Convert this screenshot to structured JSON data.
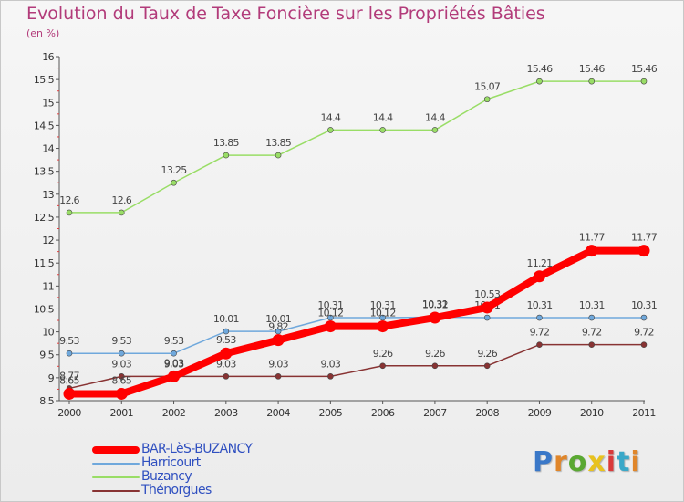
{
  "header": {
    "title": "Evolution du Taux de Taxe Foncière sur les Propriétés Bâties",
    "subtitle": "(en %)"
  },
  "chart_data": {
    "type": "line",
    "x": [
      "2000",
      "2001",
      "2002",
      "2003",
      "2004",
      "2005",
      "2006",
      "2007",
      "2008",
      "2009",
      "2010",
      "2011"
    ],
    "ylim": [
      8.5,
      16
    ],
    "yticks": [
      "8.5",
      "9",
      "9.5",
      "10",
      "10.5",
      "11",
      "11.5",
      "12",
      "12.5",
      "13",
      "13.5",
      "14",
      "14.5",
      "15",
      "15.5",
      "16"
    ],
    "grid": false,
    "legend_position": "bottom-left",
    "series": [
      {
        "name": "BAR-LèS-BUZANCY",
        "color": "#ff0000",
        "values": [
          8.65,
          8.65,
          9.03,
          9.53,
          9.82,
          10.12,
          10.12,
          10.31,
          10.53,
          11.21,
          11.77,
          11.77
        ],
        "labels": [
          "8.65",
          "8.65",
          "9.03",
          "9.53",
          "9.82",
          "10.12",
          "10.12",
          "10.31",
          "10.53",
          "11.21",
          "11.77",
          "11.77"
        ]
      },
      {
        "name": "Harricourt",
        "color": "#6fa8dc",
        "values": [
          9.53,
          9.53,
          9.53,
          10.01,
          10.01,
          10.31,
          10.31,
          10.32,
          10.31,
          10.31,
          10.31,
          10.31
        ],
        "labels": [
          "9.53",
          "9.53",
          "9.53",
          "10.01",
          "10.01",
          "10.31",
          "10.31",
          "10.32",
          "10.31",
          "10.31",
          "10.31",
          "10.31"
        ]
      },
      {
        "name": "Buzancy",
        "color": "#99dd66",
        "values": [
          12.6,
          12.6,
          13.25,
          13.85,
          13.85,
          14.4,
          14.4,
          14.4,
          15.07,
          15.46,
          15.46,
          15.46
        ],
        "labels": [
          "12.6",
          "12.6",
          "13.25",
          "13.85",
          "13.85",
          "14.4",
          "14.4",
          "14.4",
          "15.07",
          "15.46",
          "15.46",
          "15.46"
        ]
      },
      {
        "name": "Thénorgues",
        "color": "#883333",
        "values": [
          8.77,
          9.03,
          9.03,
          9.03,
          9.03,
          9.03,
          9.26,
          9.26,
          9.26,
          9.72,
          9.72,
          9.72
        ],
        "labels": [
          "8.77",
          "9.03",
          "9.03",
          "9.03",
          "9.03",
          "9.03",
          "9.26",
          "9.26",
          "9.26",
          "9.72",
          "9.72",
          "9.72"
        ]
      }
    ]
  },
  "logo": {
    "letters": [
      "P",
      "r",
      "o",
      "x",
      "i",
      "t",
      "i"
    ],
    "colors": [
      "#3a78c8",
      "#e0862a",
      "#5aa832",
      "#e8c21e",
      "#d93a3a",
      "#3aa8c8",
      "#e0862a"
    ]
  }
}
